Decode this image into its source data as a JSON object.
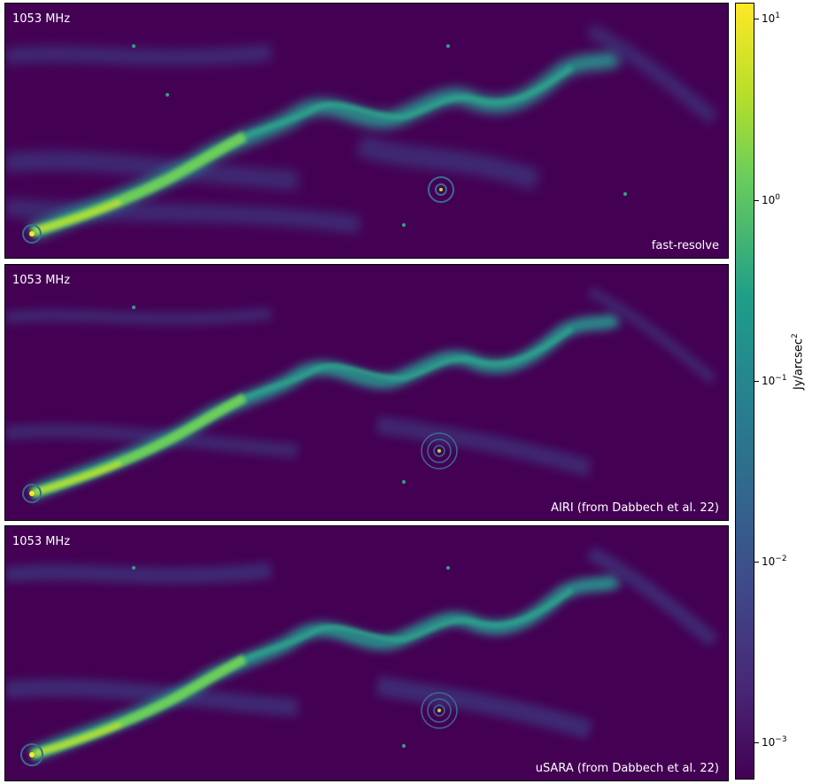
{
  "panels": [
    {
      "freq": "1053 MHz",
      "method": "fast-resolve"
    },
    {
      "freq": "1053 MHz",
      "method": "AIRI (from Dabbech et al. 22)"
    },
    {
      "freq": "1053 MHz",
      "method": "uSARA (from Dabbech et al. 22)"
    }
  ],
  "colorbar": {
    "label": "Jy/arcsec",
    "label_exponent": "2",
    "ticks": [
      {
        "base": "10",
        "exp": "1"
      },
      {
        "base": "10",
        "exp": "0"
      },
      {
        "base": "10",
        "exp": "−1"
      },
      {
        "base": "10",
        "exp": "−2"
      },
      {
        "base": "10",
        "exp": "−3"
      }
    ],
    "colormap": "viridis",
    "scale": "log"
  }
}
